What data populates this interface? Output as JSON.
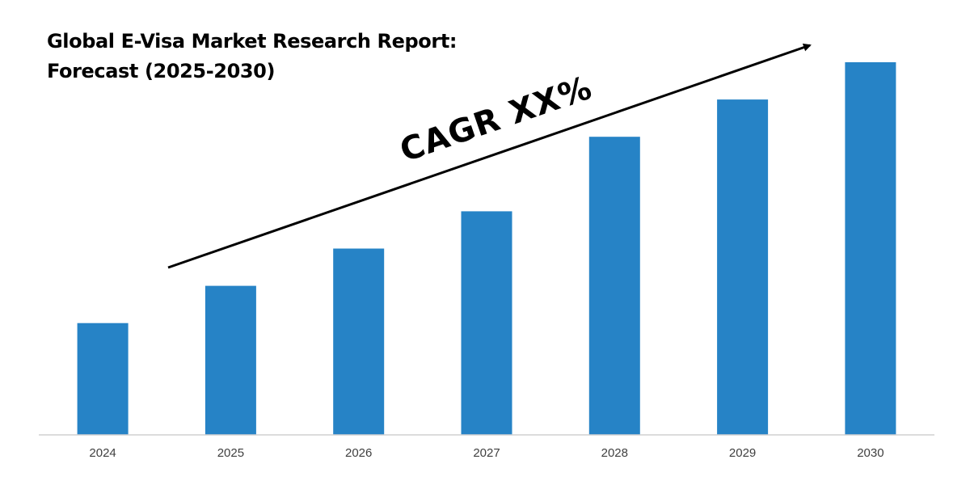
{
  "chart_data": {
    "type": "bar",
    "title_lines": [
      "Global E-Visa Market Research Report:",
      "Forecast (2025-2030)"
    ],
    "categories": [
      "2024",
      "2025",
      "2026",
      "2027",
      "2028",
      "2029",
      "2030"
    ],
    "values": [
      30,
      40,
      50,
      60,
      80,
      90,
      100
    ],
    "ylim": [
      0,
      100
    ],
    "xlabel": "",
    "ylabel": "",
    "grid": false,
    "bar_color": "#2683C6",
    "annotation": {
      "text": "CAGR XX%",
      "kind": "trend-arrow"
    }
  }
}
